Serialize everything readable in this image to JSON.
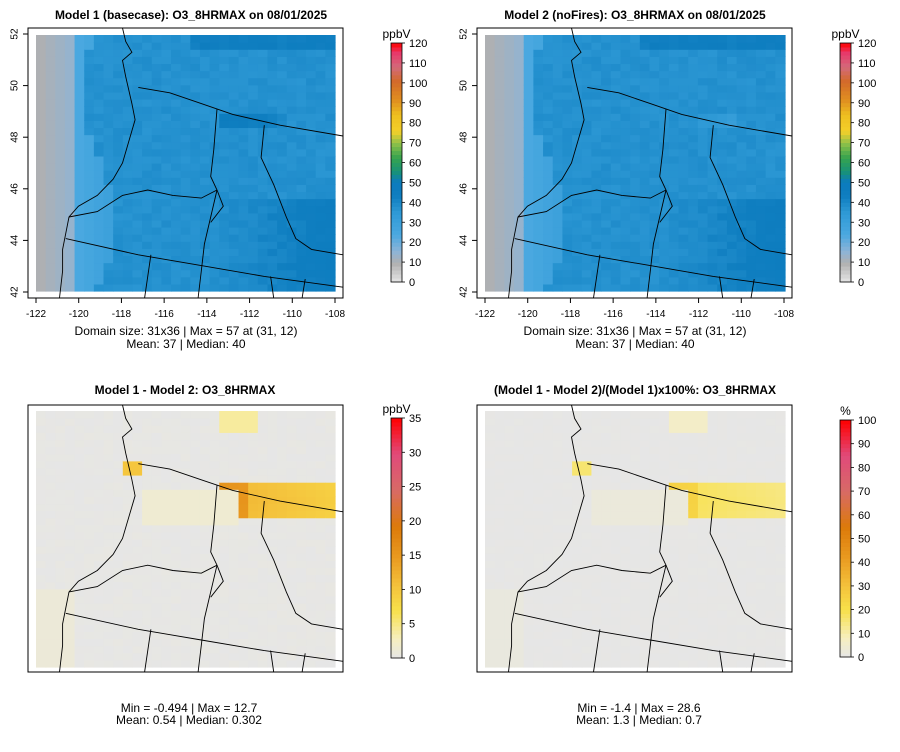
{
  "chart_data": [
    {
      "type": "heatmap",
      "title": "Model 1 (basecase): O3_8HRMAX on 08/01/2025",
      "xticks": [
        "-122",
        "-120",
        "-118",
        "-116",
        "-114",
        "-112",
        "-110",
        "-108"
      ],
      "yticks": [
        "42",
        "44",
        "46",
        "48",
        "50",
        "52"
      ],
      "xlim": [
        -122,
        -108
      ],
      "ylim": [
        42,
        52
      ],
      "colorbar": {
        "unit": "ppbV",
        "ticks": [
          "120",
          "110",
          "100",
          "90",
          "80",
          "70",
          "60",
          "50",
          "40",
          "30",
          "20",
          "10",
          "0"
        ],
        "range": [
          0,
          120
        ]
      },
      "stats_line1": "Domain size: 31x36 | Max = 57 at (31, 12)",
      "stats_line2": "Mean: 37 |  Median: 40"
    },
    {
      "type": "heatmap",
      "title": "Model 2 (noFires): O3_8HRMAX on 08/01/2025",
      "xticks": [
        "-122",
        "-120",
        "-118",
        "-116",
        "-114",
        "-112",
        "-110",
        "-108"
      ],
      "yticks": [
        "42",
        "44",
        "46",
        "48",
        "50",
        "52"
      ],
      "xlim": [
        -122,
        -108
      ],
      "ylim": [
        42,
        52
      ],
      "colorbar": {
        "unit": "ppbV",
        "ticks": [
          "120",
          "110",
          "100",
          "90",
          "80",
          "70",
          "60",
          "50",
          "40",
          "30",
          "20",
          "10",
          "0"
        ],
        "range": [
          0,
          120
        ]
      },
      "stats_line1": "Domain size: 31x36 | Max = 57 at (31, 12)",
      "stats_line2": "Mean: 37 |  Median: 40"
    },
    {
      "type": "heatmap",
      "title": "Model 1 - Model 2: O3_8HRMAX",
      "colorbar": {
        "unit": "ppbV",
        "ticks": [
          "35",
          "30",
          "25",
          "20",
          "15",
          "10",
          "5",
          "0"
        ],
        "range": [
          0,
          35
        ]
      },
      "stats_line1": "Min = -0.494 | Max = 12.7",
      "stats_line2": "Mean: 0.54 |  Median: 0.302"
    },
    {
      "type": "heatmap",
      "title": "(Model 1 - Model 2)/(Model 1)x100%: O3_8HRMAX",
      "colorbar": {
        "unit": "%",
        "ticks": [
          "100",
          "90",
          "80",
          "70",
          "60",
          "50",
          "40",
          "30",
          "20",
          "10",
          "0"
        ],
        "range": [
          0,
          100
        ]
      },
      "stats_line1": "Min = -1.4 | Max = 28.6",
      "stats_line2": "Mean: 1.3 |  Median: 0.7"
    }
  ]
}
